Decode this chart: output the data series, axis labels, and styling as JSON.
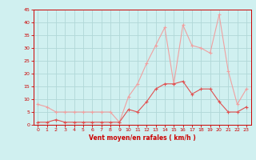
{
  "x": [
    0,
    1,
    2,
    3,
    4,
    5,
    6,
    7,
    8,
    9,
    10,
    11,
    12,
    13,
    14,
    15,
    16,
    17,
    18,
    19,
    20,
    21,
    22,
    23
  ],
  "wind_mean": [
    1,
    1,
    2,
    1,
    1,
    1,
    1,
    1,
    1,
    1,
    6,
    5,
    9,
    14,
    16,
    16,
    17,
    12,
    14,
    14,
    9,
    5,
    5,
    7
  ],
  "wind_gust": [
    8,
    7,
    5,
    5,
    5,
    5,
    5,
    5,
    5,
    1,
    11,
    16,
    24,
    31,
    38,
    16,
    39,
    31,
    30,
    28,
    43,
    21,
    8,
    14
  ],
  "xlabel": "Vent moyen/en rafales ( km/h )",
  "ylim": [
    0,
    45
  ],
  "yticks": [
    0,
    5,
    10,
    15,
    20,
    25,
    30,
    35,
    40,
    45
  ],
  "xticks": [
    0,
    1,
    2,
    3,
    4,
    5,
    6,
    7,
    8,
    9,
    10,
    11,
    12,
    13,
    14,
    15,
    16,
    17,
    18,
    19,
    20,
    21,
    22,
    23
  ],
  "color_mean": "#e05050",
  "color_gust": "#f0a0a0",
  "bg_color": "#d0f0f0",
  "grid_color": "#b0d8d8",
  "axis_color": "#cc0000",
  "xlabel_color": "#cc0000",
  "tick_color": "#cc0000"
}
